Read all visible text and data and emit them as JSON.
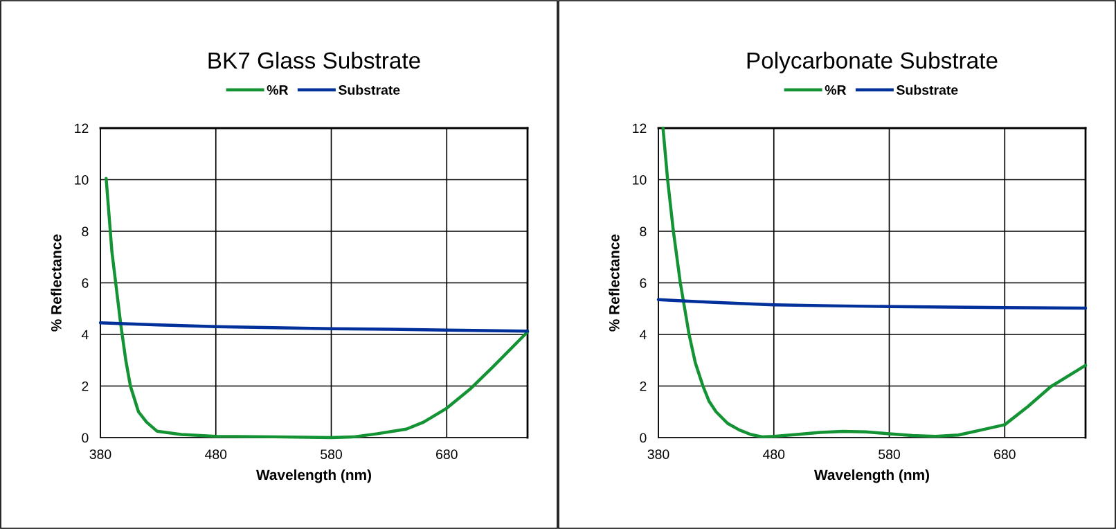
{
  "chart_data": [
    {
      "type": "line",
      "title": "BK7 Glass Substrate",
      "xlabel": "Wavelength (nm)",
      "ylabel": "% Reflectance",
      "xlim": [
        380,
        750
      ],
      "xticks": [
        380,
        480,
        580,
        680
      ],
      "ylim": [
        0,
        12
      ],
      "yticks": [
        0,
        2,
        4,
        6,
        8,
        10,
        12
      ],
      "grid": true,
      "legend": "top",
      "line_style": "solid",
      "marker": "none",
      "series": [
        {
          "name": "%R",
          "color": "#139333",
          "x": [
            385,
            390,
            397.6,
            402,
            406,
            413,
            420,
            429,
            450,
            480,
            530,
            580,
            600,
            620,
            645,
            660,
            680,
            700,
            720,
            750
          ],
          "values": [
            10.05,
            7.2,
            4.4,
            3.0,
            2.0,
            1.0,
            0.6,
            0.25,
            0.12,
            0.05,
            0.03,
            0.0,
            0.03,
            0.15,
            0.33,
            0.6,
            1.14,
            1.87,
            2.74,
            4.1
          ]
        },
        {
          "name": "Substrate",
          "color": "#00309a",
          "x": [
            380,
            430,
            480,
            530,
            580,
            630,
            680,
            750
          ],
          "values": [
            4.45,
            4.37,
            4.3,
            4.26,
            4.22,
            4.2,
            4.17,
            4.13
          ]
        }
      ]
    },
    {
      "type": "line",
      "title": "Polycarbonate Substrate",
      "xlabel": "Wavelength (nm)",
      "ylabel": "% Reflectance",
      "xlim": [
        380,
        750
      ],
      "xticks": [
        380,
        480,
        580,
        680
      ],
      "ylim": [
        0,
        12
      ],
      "yticks": [
        0,
        2,
        4,
        6,
        8,
        10,
        12
      ],
      "grid": true,
      "legend": "top",
      "line_style": "solid",
      "marker": "none",
      "series": [
        {
          "name": "%R",
          "color": "#139333",
          "x": [
            384,
            388,
            393,
            399,
            406.6,
            412,
            418.6,
            424,
            430,
            440,
            450,
            460,
            470,
            480,
            500,
            520,
            540,
            560,
            580,
            600,
            620,
            640,
            660,
            680,
            700,
            720,
            750
          ],
          "values": [
            12,
            10,
            8,
            6,
            4,
            2.9,
            2,
            1.4,
            1,
            0.55,
            0.3,
            0.12,
            0.03,
            0.05,
            0.12,
            0.2,
            0.24,
            0.22,
            0.15,
            0.08,
            0.05,
            0.1,
            0.3,
            0.5,
            1.2,
            1.98,
            2.8
          ]
        },
        {
          "name": "Substrate",
          "color": "#00309a",
          "x": [
            380,
            415,
            450,
            480,
            530,
            580,
            630,
            680,
            750
          ],
          "values": [
            5.35,
            5.27,
            5.2,
            5.15,
            5.11,
            5.08,
            5.06,
            5.04,
            5.02
          ]
        }
      ]
    }
  ]
}
